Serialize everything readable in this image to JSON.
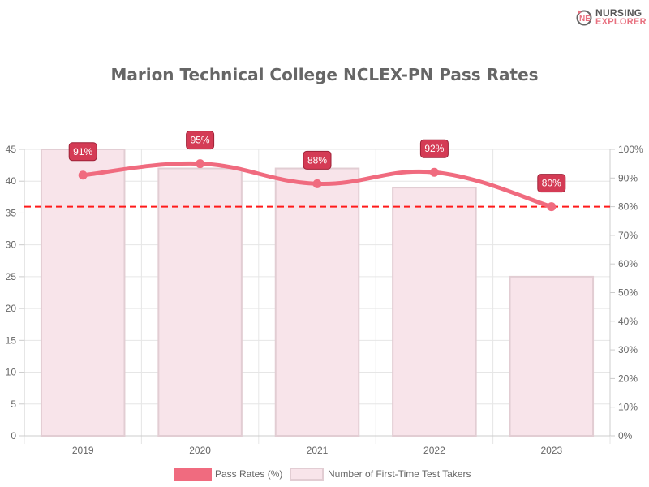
{
  "logo": {
    "line1": "NURSING",
    "line2": "EXPLORER"
  },
  "chart_data": {
    "type": "bar",
    "title": "Marion Technical College NCLEX-PN Pass Rates",
    "categories": [
      "2019",
      "2020",
      "2021",
      "2022",
      "2023"
    ],
    "series": [
      {
        "name": "Pass Rates (%)",
        "type": "line",
        "axis": "right",
        "values": [
          91,
          95,
          88,
          92,
          80
        ],
        "labels": [
          "91%",
          "95%",
          "88%",
          "92%",
          "80%"
        ],
        "color": "#f06b7f"
      },
      {
        "name": "Number of First-Time Test Takers",
        "type": "bar",
        "axis": "left",
        "values": [
          45,
          42,
          42,
          39,
          25
        ],
        "color": "#f8e4ea",
        "border": "#e2cdd3"
      }
    ],
    "left_axis": {
      "min": 0,
      "max": 45,
      "ticks": [
        "0",
        "5",
        "10",
        "15",
        "20",
        "25",
        "30",
        "35",
        "40",
        "45"
      ]
    },
    "right_axis": {
      "min": 0,
      "max": 100,
      "ticks": [
        "0%",
        "10%",
        "20%",
        "30%",
        "40%",
        "50%",
        "60%",
        "70%",
        "80%",
        "90%",
        "100%"
      ]
    },
    "reference_line": {
      "value": 80,
      "axis": "right",
      "style": "dashed",
      "color": "#ff1a1a"
    },
    "label_color": "#d43b55",
    "grid": true,
    "legend_position": "bottom"
  }
}
